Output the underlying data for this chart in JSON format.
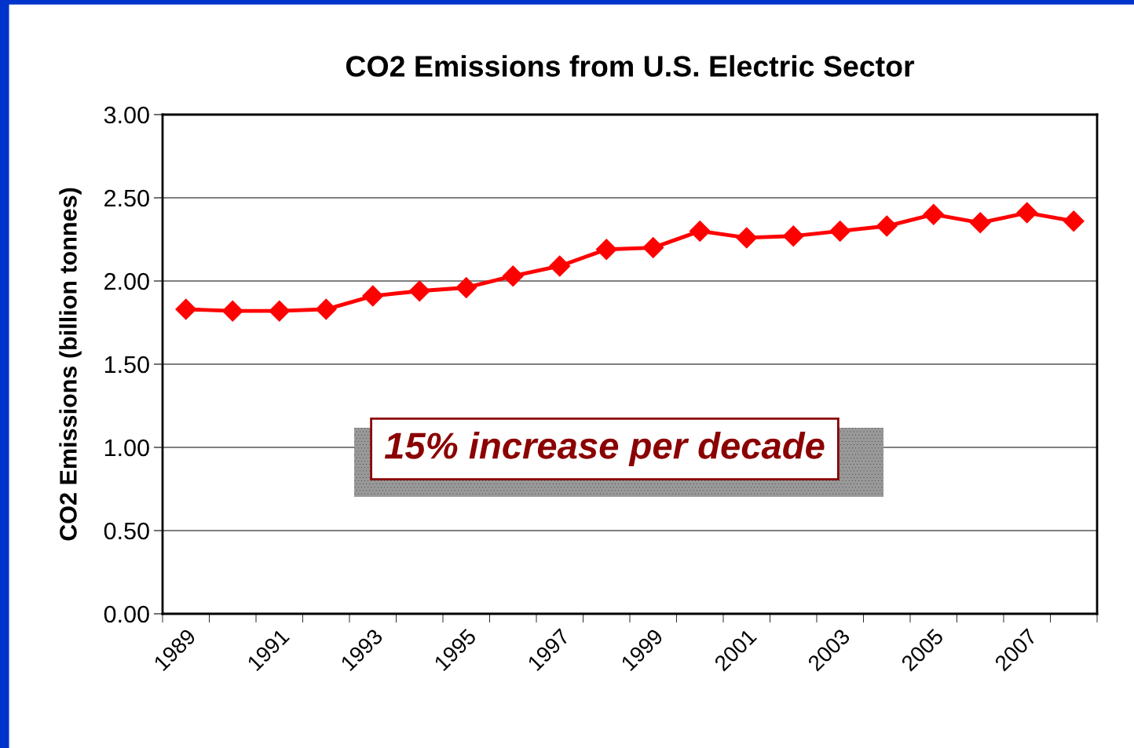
{
  "chart_data": {
    "type": "line",
    "title": "CO2 Emissions from U.S. Electric Sector",
    "ylabel": "CO2 Emissions (billion tonnes)",
    "categories": [
      "1989",
      null,
      "1991",
      null,
      "1993",
      null,
      "1995",
      null,
      "1997",
      null,
      "1999",
      null,
      "2001",
      null,
      "2003",
      null,
      "2005",
      null,
      "2007",
      null
    ],
    "series": [
      {
        "color": "#ff0000",
        "values": [
          1.83,
          1.82,
          1.82,
          1.83,
          1.91,
          1.94,
          1.96,
          2.03,
          2.09,
          2.19,
          2.2,
          2.3,
          2.26,
          2.27,
          2.3,
          2.33,
          2.4,
          2.35,
          2.41,
          2.36
        ]
      }
    ],
    "ylim": [
      0,
      3
    ],
    "yticks": [
      {
        "value": 0,
        "label": "0.00"
      },
      {
        "value": 0.5,
        "label": "0.50"
      },
      {
        "value": 1,
        "label": "1.00"
      },
      {
        "value": 1.5,
        "label": "1.50"
      },
      {
        "value": 2,
        "label": "2.00"
      },
      {
        "value": 2.5,
        "label": "2.50"
      },
      {
        "value": 3,
        "label": "3.00"
      }
    ],
    "grid": "y",
    "legend": false,
    "marker": "diamond",
    "line_style": "solid",
    "annotations": [
      "15% increase per decade"
    ]
  }
}
